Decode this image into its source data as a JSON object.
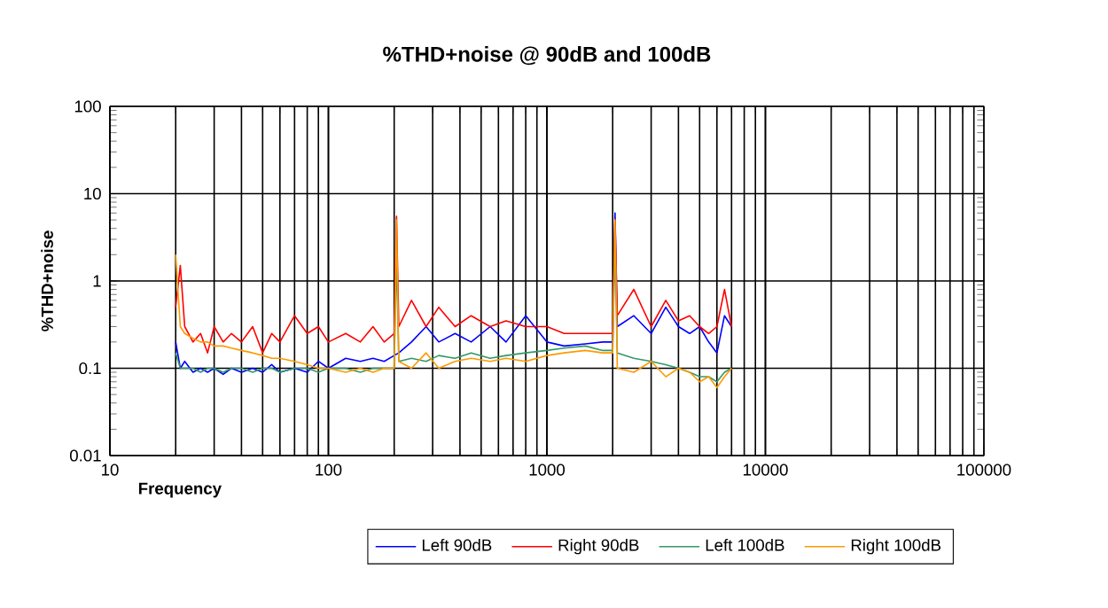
{
  "chart_data": {
    "type": "line",
    "title": "%THD+noise @ 90dB and 100dB",
    "xlabel": "Frequency",
    "ylabel": "%THD+noise",
    "log": "xy",
    "grid": true,
    "legend": "bottom",
    "marker": "none",
    "line_style": "solid",
    "xlim": [
      10,
      100000
    ],
    "ylim": [
      0.01,
      100
    ],
    "xticks": [
      10,
      100,
      1000,
      10000,
      100000
    ],
    "yticks": [
      0.01,
      0.1,
      1,
      10,
      100
    ],
    "x": [
      20,
      21,
      22,
      24,
      26,
      28,
      30,
      33,
      36,
      40,
      45,
      50,
      55,
      60,
      70,
      80,
      90,
      100,
      120,
      140,
      160,
      180,
      200,
      205,
      210,
      240,
      280,
      320,
      380,
      450,
      550,
      650,
      800,
      1000,
      1200,
      1500,
      1800,
      2000,
      2050,
      2100,
      2500,
      3000,
      3500,
      4000,
      4500,
      5000,
      5500,
      6000,
      6500,
      7000
    ],
    "series": [
      {
        "name": "Left 90dB",
        "color": "#0000ff",
        "values": [
          0.2,
          0.1,
          0.12,
          0.09,
          0.1,
          0.09,
          0.1,
          0.085,
          0.1,
          0.09,
          0.1,
          0.09,
          0.11,
          0.09,
          0.1,
          0.09,
          0.12,
          0.1,
          0.13,
          0.12,
          0.13,
          0.12,
          0.14,
          null,
          0.15,
          0.2,
          0.3,
          0.2,
          0.25,
          0.2,
          0.3,
          0.2,
          0.4,
          0.2,
          0.18,
          0.19,
          0.2,
          0.2,
          6,
          0.3,
          0.4,
          0.25,
          0.5,
          0.3,
          0.25,
          0.3,
          0.2,
          0.15,
          0.4,
          0.3
        ]
      },
      {
        "name": "Right 90dB",
        "color": "#ff0000",
        "values": [
          0.5,
          1.5,
          0.3,
          0.2,
          0.25,
          0.15,
          0.3,
          0.2,
          0.25,
          0.2,
          0.3,
          0.15,
          0.25,
          0.2,
          0.4,
          0.25,
          0.3,
          0.2,
          0.25,
          0.2,
          0.3,
          0.2,
          0.25,
          5.5,
          0.3,
          0.6,
          0.3,
          0.5,
          0.3,
          0.4,
          0.3,
          0.35,
          0.3,
          0.3,
          0.25,
          0.25,
          0.25,
          0.25,
          5,
          0.4,
          0.8,
          0.3,
          0.6,
          0.35,
          0.4,
          0.3,
          0.25,
          0.3,
          0.8,
          0.3
        ]
      },
      {
        "name": "Left 100dB",
        "color": "#339966",
        "values": [
          0.15,
          0.1,
          0.1,
          0.1,
          0.09,
          0.1,
          0.1,
          0.09,
          0.1,
          0.1,
          0.09,
          0.1,
          0.1,
          0.09,
          0.1,
          0.1,
          0.09,
          0.1,
          0.1,
          0.09,
          0.1,
          0.1,
          0.1,
          2,
          0.12,
          0.13,
          0.12,
          0.14,
          0.13,
          0.15,
          0.13,
          0.14,
          0.15,
          0.16,
          0.17,
          0.18,
          0.16,
          0.16,
          3,
          0.15,
          0.13,
          0.12,
          0.11,
          0.1,
          0.09,
          0.08,
          0.08,
          0.07,
          0.09,
          0.1
        ]
      },
      {
        "name": "Right 100dB",
        "color": "#ff9900",
        "values": [
          2,
          0.3,
          0.25,
          0.22,
          0.2,
          0.2,
          0.18,
          0.18,
          0.17,
          0.16,
          0.15,
          0.14,
          0.13,
          0.13,
          0.12,
          0.11,
          0.1,
          0.1,
          0.09,
          0.1,
          0.09,
          0.1,
          0.1,
          5,
          0.12,
          0.1,
          0.15,
          0.1,
          0.12,
          0.13,
          0.12,
          0.13,
          0.12,
          0.14,
          0.15,
          0.16,
          0.15,
          0.15,
          5,
          0.1,
          0.09,
          0.12,
          0.08,
          0.1,
          0.09,
          0.07,
          0.08,
          0.06,
          0.08,
          0.1
        ]
      }
    ]
  }
}
